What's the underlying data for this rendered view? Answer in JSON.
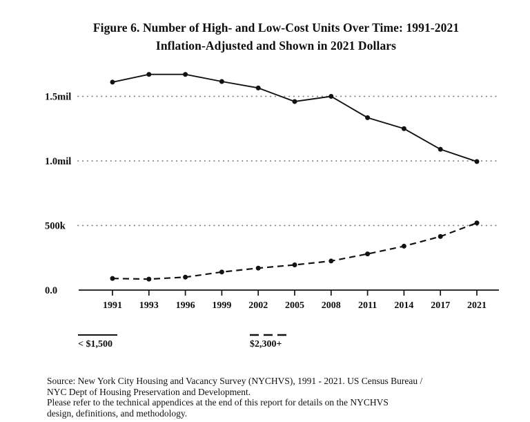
{
  "title": {
    "line1": "Figure 6. Number of High- and Low-Cost Units Over Time: 1991-2021",
    "line2": "Inflation-Adjusted and Shown in 2021 Dollars"
  },
  "chart_data": {
    "type": "line",
    "title": "Figure 6. Number of High- and Low-Cost Units Over Time: 1991-2021 Inflation-Adjusted and Shown in 2021 Dollars",
    "xlabel": "",
    "ylabel": "",
    "categories": [
      "1991",
      "1993",
      "1996",
      "1999",
      "2002",
      "2005",
      "2008",
      "2011",
      "2014",
      "2017",
      "2021"
    ],
    "series": [
      {
        "name": "< $1,500",
        "style": "solid",
        "values": [
          1610000,
          1670000,
          1670000,
          1615000,
          1565000,
          1460000,
          1500000,
          1335000,
          1250000,
          1090000,
          995000
        ]
      },
      {
        "name": "$2,300+",
        "style": "dashed",
        "values": [
          90000,
          85000,
          100000,
          140000,
          170000,
          195000,
          225000,
          280000,
          340000,
          415000,
          520000
        ]
      }
    ],
    "yticks": [
      {
        "label": "1.5mil",
        "value": 1500000,
        "gridline": true
      },
      {
        "label": "1.0mil",
        "value": 1000000,
        "gridline": true
      },
      {
        "label": "500k",
        "value": 500000,
        "gridline": true
      },
      {
        "label": "0.0",
        "value": 0,
        "gridline": false
      }
    ],
    "ylim": [
      0,
      1750000
    ],
    "grid": "dotted-horizontal",
    "legend_position": "below-left",
    "line_color": "#121212",
    "grid_color": "#777777"
  },
  "legend": {
    "items": [
      {
        "label": "< $1,500",
        "style": "solid"
      },
      {
        "label": "$2,300+",
        "style": "dashed"
      }
    ]
  },
  "source": {
    "lines": [
      "Source: New York City Housing and Vacancy Survey (NYCHVS), 1991 - 2021. US Census Bureau /",
      "NYC Dept of Housing Preservation and Development.",
      "Please refer to the technical appendices at the end of this report for details on the NYCHVS",
      "design, definitions, and methodology."
    ]
  }
}
